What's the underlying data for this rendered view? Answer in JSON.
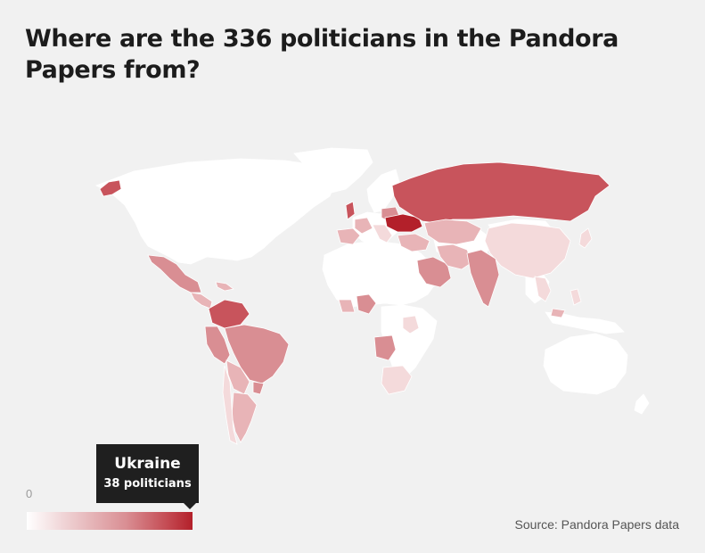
{
  "title": "Where are the 336 politicians in the Pandora Papers from?",
  "tooltip": {
    "country": "Ukraine",
    "count_label": "38 politicians"
  },
  "legend": {
    "min_label": "0",
    "color_low": "#ffffff",
    "color_high": "#b3202a"
  },
  "source": "Source: Pandora Papers data",
  "colors": {
    "background": "#f1f1f1",
    "land_zero": "#ffffff",
    "shade_1": "#f4dadb",
    "shade_2": "#e8b4b7",
    "shade_3": "#d98e93",
    "shade_4": "#c8545c",
    "shade_max": "#b3202a",
    "tooltip_bg": "#1f1f1f"
  }
}
